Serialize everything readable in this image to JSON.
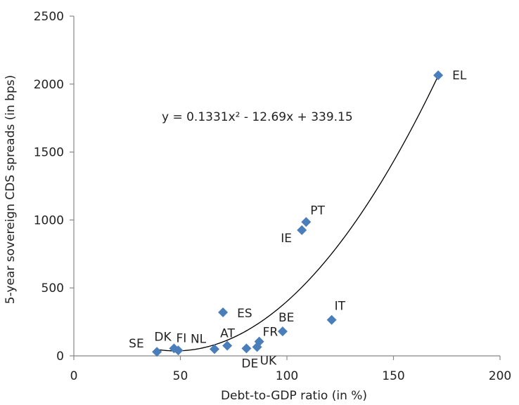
{
  "chart_data": {
    "type": "scatter",
    "title": "",
    "xlabel": "Debt-to-GDP ratio (in %)",
    "ylabel": "5-year sovereign CDS spreads (in bps)",
    "xlim": [
      0,
      200
    ],
    "ylim": [
      0,
      2500
    ],
    "x_ticks": [
      0,
      50,
      100,
      150,
      200
    ],
    "y_ticks": [
      0,
      500,
      1000,
      1500,
      2000,
      2500
    ],
    "grid": false,
    "legend": "none",
    "marker_color": "#4a7ebb",
    "trendline_color": "#000000",
    "points": [
      {
        "label": "SE",
        "x": 39,
        "y": 30
      },
      {
        "label": "DK",
        "x": 47,
        "y": 55
      },
      {
        "label": "FI",
        "x": 49,
        "y": 40
      },
      {
        "label": "NL",
        "x": 66,
        "y": 50
      },
      {
        "label": "AT",
        "x": 72,
        "y": 75
      },
      {
        "label": "DE",
        "x": 81,
        "y": 55
      },
      {
        "label": "UK",
        "x": 86,
        "y": 65
      },
      {
        "label": "FR",
        "x": 87,
        "y": 105
      },
      {
        "label": "BE",
        "x": 98,
        "y": 180
      },
      {
        "label": "ES",
        "x": 70,
        "y": 320
      },
      {
        "label": "IT",
        "x": 121,
        "y": 265
      },
      {
        "label": "IE",
        "x": 107,
        "y": 925
      },
      {
        "label": "PT",
        "x": 109,
        "y": 985
      },
      {
        "label": "EL",
        "x": 171,
        "y": 2065
      }
    ],
    "trendline": {
      "type": "polynomial",
      "coefficients": {
        "a": 0.1331,
        "b": -12.69,
        "c": 339.15
      },
      "x_range": [
        39,
        171
      ],
      "equation": "y = 0.1331x² - 12.69x + 339.15"
    }
  }
}
